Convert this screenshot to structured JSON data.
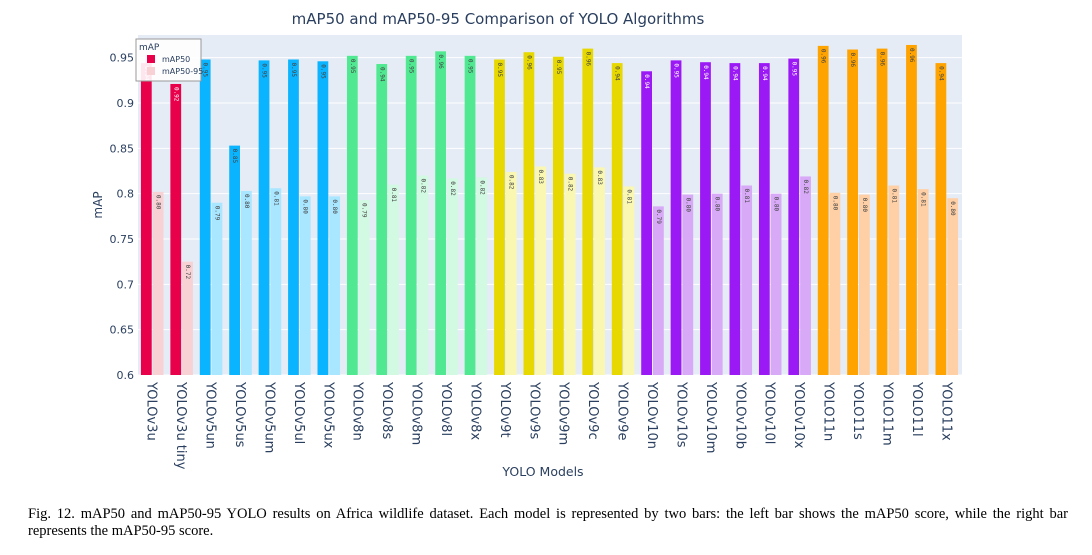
{
  "chart_data": {
    "type": "bar",
    "title": "mAP50 and mAP50-95 Comparison of YOLO Algorithms",
    "xlabel": "YOLO Models",
    "ylabel": "mAP",
    "ylim": [
      0.6,
      0.975
    ],
    "yticks": [
      0.6,
      0.65,
      0.7,
      0.75,
      0.8,
      0.85,
      0.9,
      0.95
    ],
    "ytick_labels": [
      "0.6",
      "0.65",
      "0.7",
      "0.75",
      "0.8",
      "0.85",
      "0.9",
      "0.95"
    ],
    "grid": true,
    "legend": {
      "title": "mAP",
      "position": "top-left",
      "entries": [
        "mAP50",
        "mAP50-95"
      ]
    },
    "categories": [
      "YOLOv3u",
      "YOLOv3u tiny",
      "YOLOv5un",
      "YOLOv5us",
      "YOLOv5um",
      "YOLOv5ul",
      "YOLOv5ux",
      "YOLOv8n",
      "YOLOv8s",
      "YOLOv8m",
      "YOLOv8l",
      "YOLOv8x",
      "YOLOv9t",
      "YOLOv9s",
      "YOLOv9m",
      "YOLOv9c",
      "YOLOv9e",
      "YOLOv10n",
      "YOLOv10s",
      "YOLOv10m",
      "YOLOv10b",
      "YOLOv10l",
      "YOLOv10x",
      "YOLO11n",
      "YOLO11s",
      "YOLO11m",
      "YOLO11l",
      "YOLO11x"
    ],
    "family_colors": [
      {
        "dark": "#E8004B",
        "light": "#F8D1D5"
      },
      {
        "dark": "#E8004B",
        "light": "#F8D1D5"
      },
      {
        "dark": "#0BB4FF",
        "light": "#A9E6FF"
      },
      {
        "dark": "#0BB4FF",
        "light": "#A9E6FF"
      },
      {
        "dark": "#0BB4FF",
        "light": "#A9E6FF"
      },
      {
        "dark": "#0BB4FF",
        "light": "#A9E6FF"
      },
      {
        "dark": "#0BB4FF",
        "light": "#A9E6FF"
      },
      {
        "dark": "#50E991",
        "light": "#D2F9E2"
      },
      {
        "dark": "#50E991",
        "light": "#D2F9E2"
      },
      {
        "dark": "#50E991",
        "light": "#D2F9E2"
      },
      {
        "dark": "#50E991",
        "light": "#D2F9E2"
      },
      {
        "dark": "#50E991",
        "light": "#D2F9E2"
      },
      {
        "dark": "#E6D800",
        "light": "#F9F7B2"
      },
      {
        "dark": "#E6D800",
        "light": "#F9F7B2"
      },
      {
        "dark": "#E6D800",
        "light": "#F9F7B2"
      },
      {
        "dark": "#E6D800",
        "light": "#F9F7B2"
      },
      {
        "dark": "#E6D800",
        "light": "#F9F7B2"
      },
      {
        "dark": "#9B19F5",
        "light": "#D7A9F6"
      },
      {
        "dark": "#9B19F5",
        "light": "#D7A9F6"
      },
      {
        "dark": "#9B19F5",
        "light": "#D7A9F6"
      },
      {
        "dark": "#9B19F5",
        "light": "#D7A9F6"
      },
      {
        "dark": "#9B19F5",
        "light": "#D7A9F6"
      },
      {
        "dark": "#9B19F5",
        "light": "#D7A9F6"
      },
      {
        "dark": "#FFA300",
        "light": "#FFD0A6"
      },
      {
        "dark": "#FFA300",
        "light": "#FFD0A6"
      },
      {
        "dark": "#FFA300",
        "light": "#FFD0A6"
      },
      {
        "dark": "#FFA300",
        "light": "#FFD0A6"
      },
      {
        "dark": "#FFA300",
        "light": "#FFD0A6"
      }
    ],
    "series": [
      {
        "name": "mAP50",
        "values": [
          0.944,
          0.921,
          0.948,
          0.853,
          0.947,
          0.948,
          0.946,
          0.952,
          0.943,
          0.952,
          0.957,
          0.952,
          0.948,
          0.956,
          0.951,
          0.96,
          0.944,
          0.935,
          0.947,
          0.945,
          0.944,
          0.944,
          0.949,
          0.963,
          0.959,
          0.96,
          0.964,
          0.944
        ],
        "labels": [
          "0.94",
          "0.92",
          "0.95",
          "0.85",
          "0.95",
          "0.95",
          "0.95",
          "0.95",
          "0.94",
          "0.95",
          "0.96",
          "0.95",
          "0.95",
          "0.96",
          "0.95",
          "0.96",
          "0.94",
          "0.94",
          "0.95",
          "0.94",
          "0.94",
          "0.94",
          "0.95",
          "0.96",
          "0.96",
          "0.96",
          "0.96",
          "0.94"
        ]
      },
      {
        "name": "mAP50-95",
        "values": [
          0.802,
          0.725,
          0.79,
          0.803,
          0.806,
          0.797,
          0.797,
          0.793,
          0.81,
          0.82,
          0.817,
          0.818,
          0.824,
          0.83,
          0.822,
          0.829,
          0.808,
          0.786,
          0.799,
          0.8,
          0.809,
          0.8,
          0.819,
          0.801,
          0.799,
          0.809,
          0.805,
          0.795
        ],
        "labels": [
          "0.80",
          "0.72",
          "0.79",
          "0.80",
          "0.81",
          "0.80",
          "0.80",
          "0.79",
          "0.81",
          "0.82",
          "0.82",
          "0.82",
          "0.82",
          "0.83",
          "0.82",
          "0.83",
          "0.81",
          "0.79",
          "0.80",
          "0.80",
          "0.81",
          "0.80",
          "0.82",
          "0.80",
          "0.80",
          "0.81",
          "0.81",
          "0.80"
        ]
      }
    ]
  },
  "caption": "Fig. 12.  mAP50 and mAP50-95 YOLO results on Africa wildlife dataset. Each model is represented by two bars: the left bar shows the mAP50 score, while the right bar represents the mAP50-95 score."
}
